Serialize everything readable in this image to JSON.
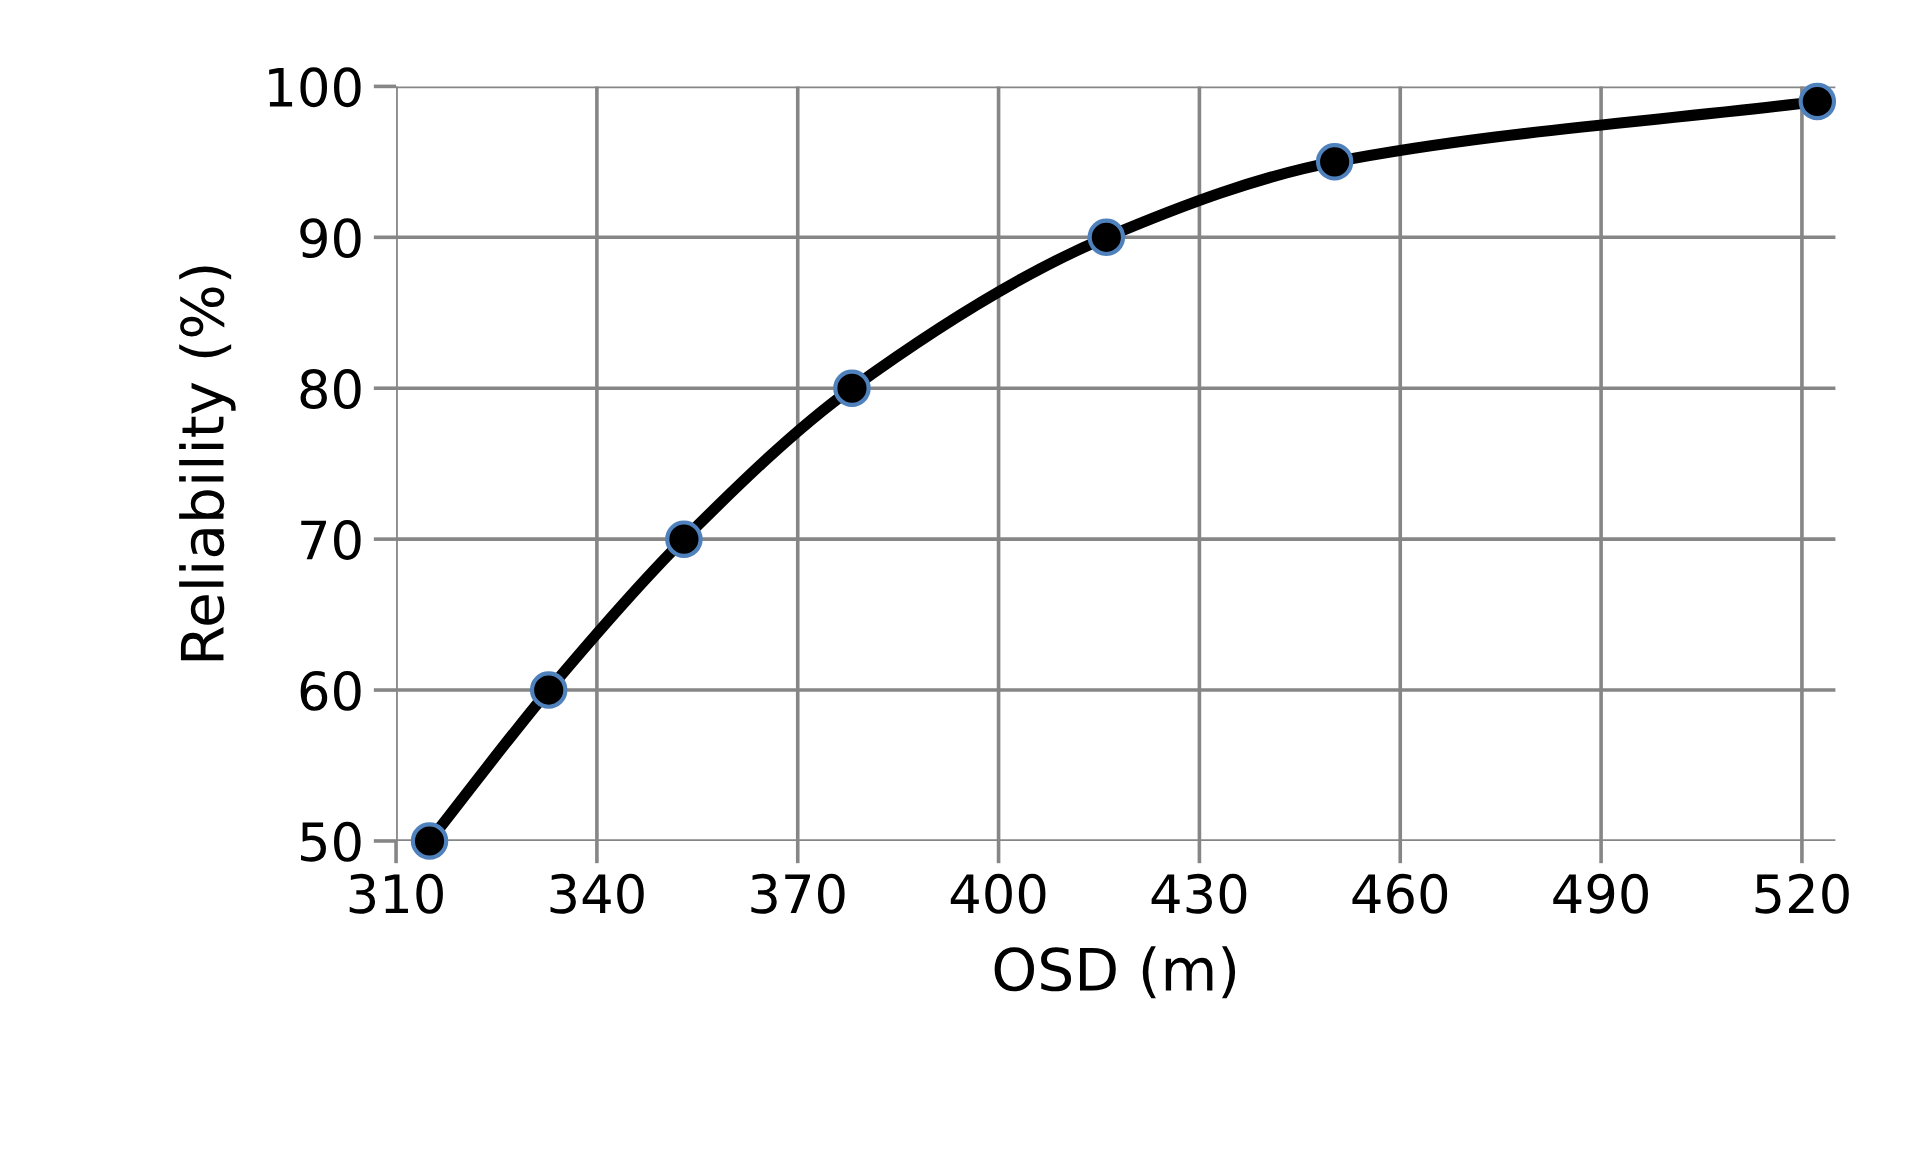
{
  "chart_data": {
    "type": "line",
    "xlabel": "OSD (m)",
    "ylabel": "Reliability (%)",
    "x": [
      315,
      332.8,
      353,
      378.1,
      416.1,
      450.2,
      522.3
    ],
    "series": [
      {
        "color": "#000000",
        "values": [
          50,
          60,
          70,
          80,
          90,
          95,
          99
        ]
      }
    ],
    "xlim": [
      310,
      525
    ],
    "xticks": [
      310,
      340,
      370,
      400,
      430,
      460,
      490,
      520
    ],
    "ylim": [
      50,
      100
    ],
    "yticks": [
      50,
      60,
      70,
      80,
      90,
      100
    ],
    "grid": true,
    "marker": "circle",
    "line_style": "solid"
  }
}
